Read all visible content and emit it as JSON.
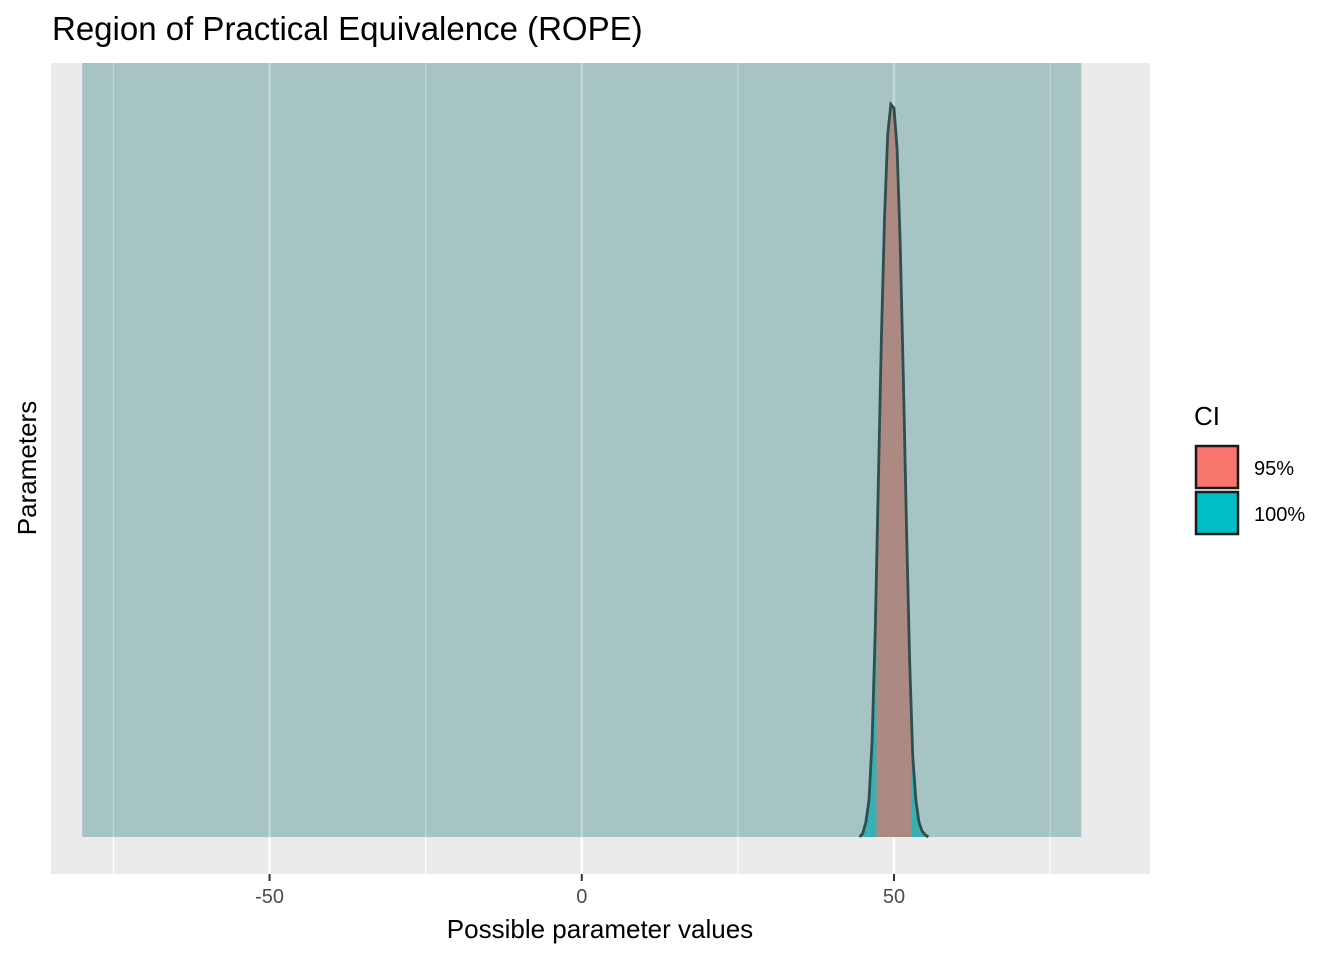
{
  "chart_data": {
    "type": "area",
    "title": "Region of Practical Equivalence (ROPE)",
    "xlabel": "Possible parameter values",
    "ylabel": "Parameters",
    "xlim": [
      -85,
      91
    ],
    "x_ticks": [
      -50,
      0,
      50
    ],
    "x_tick_labels": [
      "-50",
      "0",
      "50"
    ],
    "x_minor_gridlines": [
      -75,
      -25,
      25,
      75
    ],
    "grid": true,
    "rope": {
      "low": -80,
      "high": 80,
      "color": "#A7C4C5"
    },
    "density": {
      "x": [
        44.5,
        45.0,
        45.5,
        46.0,
        46.5,
        47.0,
        47.5,
        48.0,
        48.5,
        49.0,
        49.5,
        50.0,
        50.5,
        51.0,
        51.5,
        52.0,
        52.5,
        53.0,
        53.5,
        54.0,
        54.5,
        55.0,
        55.5
      ],
      "y": [
        0.0,
        0.005,
        0.02,
        0.05,
        0.13,
        0.28,
        0.48,
        0.68,
        0.84,
        0.95,
        0.99,
        0.985,
        0.93,
        0.8,
        0.62,
        0.42,
        0.24,
        0.11,
        0.05,
        0.02,
        0.008,
        0.003,
        0.0
      ]
    },
    "ci_95": [
      47.2,
      52.8
    ],
    "ci_100": [
      44.5,
      55.5
    ],
    "legend": {
      "title": "CI",
      "position": "right",
      "entries": [
        {
          "label": "95%",
          "color": "#F8766D"
        },
        {
          "label": "100%",
          "color": "#00BFC4"
        }
      ]
    },
    "colors": {
      "panel_bg": "#EBEBEB",
      "grid": "#FFFFFF",
      "outline": "#2F4F4F",
      "fill_95_blend": "#AC8A83",
      "fill_100_blend": "#38B0B3"
    }
  }
}
